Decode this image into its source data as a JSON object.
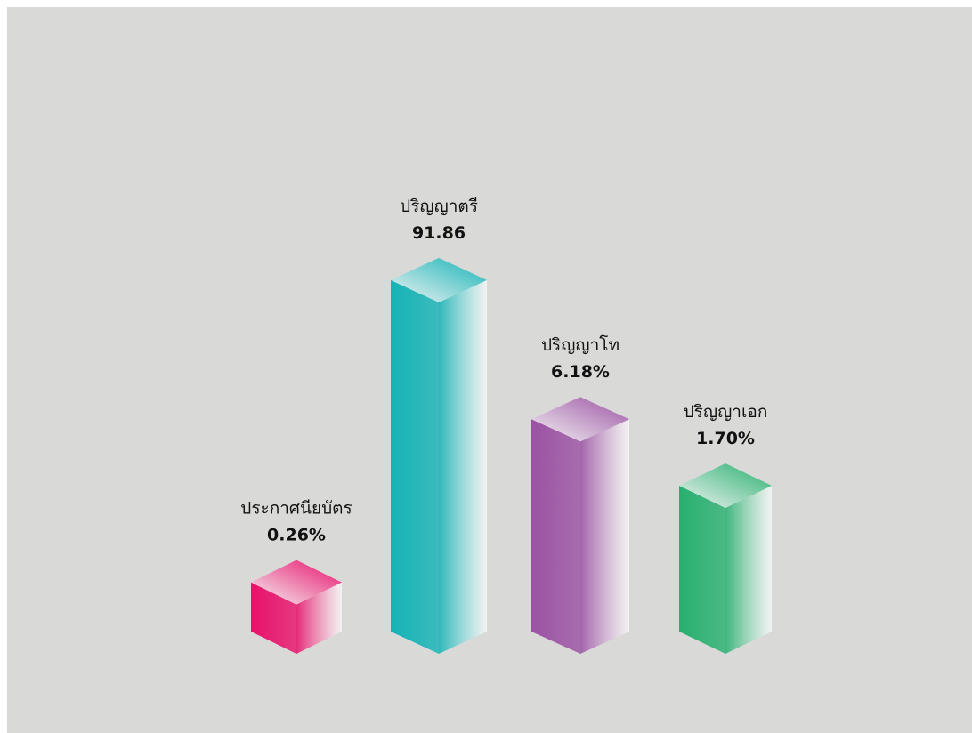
{
  "chart_data": {
    "type": "bar3d",
    "categories": [
      "ประกาศนียบัตร",
      "ปริญญาตรี",
      "ปริญญาโท",
      "ปริญญาเอก"
    ],
    "values": [
      0.26,
      91.86,
      6.18,
      1.7
    ],
    "value_labels": [
      "0.26%",
      "91.86",
      "6.18%",
      "1.70%"
    ],
    "colors": [
      "#e8106a",
      "#14b3b6",
      "#9b52a3",
      "#27b06f"
    ],
    "log_scale": true,
    "ylim": [
      0.1,
      100
    ]
  }
}
